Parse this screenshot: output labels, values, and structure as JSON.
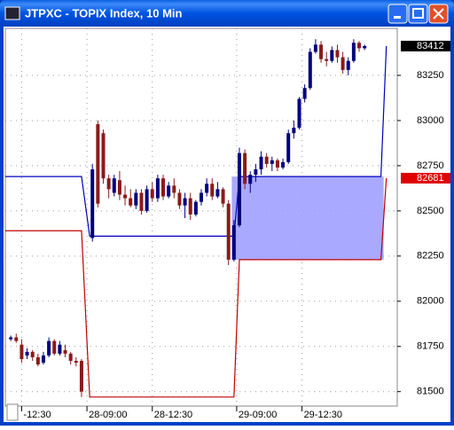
{
  "window_title": "JTPXC - TOPIX Index, 10 Min",
  "chart_data": {
    "type": "candlestick",
    "x": [
      0,
      1,
      2,
      3,
      4,
      5,
      6,
      7,
      8,
      9,
      10,
      11,
      12,
      13,
      15,
      16,
      17,
      18,
      19,
      20,
      21,
      22,
      23,
      24,
      25,
      26,
      27,
      28,
      29,
      30,
      31,
      32,
      33,
      34,
      35,
      36,
      37,
      38,
      39,
      40,
      41,
      42,
      43,
      44,
      45,
      46,
      47,
      48,
      49,
      50,
      51,
      52,
      53,
      54,
      55,
      56,
      57,
      58,
      59,
      60,
      61,
      62,
      63,
      64,
      65
    ],
    "open": [
      81790,
      81800,
      81760,
      81700,
      81720,
      81690,
      81660,
      81700,
      81780,
      81710,
      81730,
      81710,
      81670,
      81670,
      82350,
      82980,
      82930,
      82680,
      82600,
      82670,
      82590,
      82570,
      82530,
      82600,
      82500,
      82620,
      82570,
      82680,
      82580,
      82640,
      82600,
      82530,
      82570,
      82480,
      82550,
      82600,
      82650,
      82580,
      82620,
      82540,
      82230,
      82420,
      82820,
      82650,
      82700,
      82730,
      82800,
      82760,
      82780,
      82740,
      82770,
      82930,
      82960,
      83120,
      83180,
      83380,
      83420,
      83340,
      83330,
      83390,
      83350,
      83280,
      83330,
      83430,
      83400
    ],
    "high": [
      81810,
      81820,
      81790,
      81740,
      81730,
      81710,
      81720,
      81800,
      81790,
      81780,
      81760,
      81720,
      81690,
      81680,
      82760,
      83000,
      82950,
      82700,
      82700,
      82720,
      82640,
      82620,
      82620,
      82620,
      82640,
      82660,
      82700,
      82700,
      82660,
      82680,
      82620,
      82600,
      82600,
      82560,
      82620,
      82680,
      82680,
      82660,
      82630,
      82560,
      82450,
      82850,
      82840,
      82720,
      82760,
      82830,
      82820,
      82800,
      82790,
      82790,
      82950,
      83000,
      83130,
      83200,
      83400,
      83450,
      83440,
      83380,
      83410,
      83420,
      83380,
      83350,
      83450,
      83440,
      83420
    ],
    "low": [
      81780,
      81770,
      81660,
      81680,
      81670,
      81640,
      81650,
      81690,
      81700,
      81700,
      81690,
      81650,
      81640,
      81470,
      82330,
      82520,
      82650,
      82570,
      82580,
      82560,
      82530,
      82520,
      82510,
      82480,
      82490,
      82550,
      82550,
      82560,
      82570,
      82570,
      82510,
      82460,
      82450,
      82470,
      82530,
      82580,
      82560,
      82570,
      82520,
      82200,
      82220,
      82410,
      82620,
      82600,
      82660,
      82700,
      82740,
      82720,
      82720,
      82730,
      82760,
      82900,
      82950,
      83100,
      83170,
      83370,
      83320,
      83300,
      83320,
      83320,
      83260,
      83250,
      83320,
      83380,
      83390
    ],
    "close": [
      81800,
      81780,
      81680,
      81720,
      81690,
      81650,
      81700,
      81780,
      81710,
      81760,
      81710,
      81670,
      81660,
      81500,
      82730,
      82540,
      82680,
      82620,
      82680,
      82590,
      82570,
      82530,
      82600,
      82500,
      82620,
      82570,
      82680,
      82580,
      82640,
      82600,
      82530,
      82570,
      82480,
      82550,
      82600,
      82650,
      82580,
      82620,
      82540,
      82230,
      82420,
      82820,
      82650,
      82700,
      82730,
      82800,
      82760,
      82780,
      82740,
      82770,
      82930,
      82960,
      83120,
      83180,
      83380,
      83420,
      83340,
      83330,
      83390,
      83350,
      83280,
      83330,
      83430,
      83400,
      83412
    ],
    "up_color": "#000080",
    "down_color": "#8b1a1a",
    "lines": [
      {
        "color": "#0000c0",
        "x": [
          -1,
          13,
          14.5,
          41,
          42,
          68,
          69
        ],
        "values": [
          82690,
          82690,
          82360,
          82360,
          82690,
          82690,
          83412
        ]
      },
      {
        "color": "#c00000",
        "x": [
          -1,
          13,
          14.5,
          41,
          42,
          68,
          69
        ],
        "values": [
          82390,
          82390,
          81470,
          81470,
          82230,
          82230,
          82681
        ]
      }
    ],
    "zone": {
      "color": "#9a9aff",
      "xlim": [
        40.6,
        68.5
      ],
      "ylim": [
        82230,
        82690
      ]
    },
    "markers": [
      {
        "value": 83412,
        "color": "#000000"
      },
      {
        "value": 82681,
        "color": "#e00000"
      }
    ],
    "xlim": [
      -1,
      71
    ],
    "ylim": [
      81420,
      83510
    ],
    "xticks": [
      {
        "value": 2,
        "label": "-12:30"
      },
      {
        "value": 14,
        "label": "28-09:00"
      },
      {
        "value": 26,
        "label": "28-12:30"
      },
      {
        "value": 41.5,
        "label": "29-09:00"
      },
      {
        "value": 53.5,
        "label": "29-12:30"
      }
    ],
    "yticks": [
      81500,
      81750,
      82000,
      82250,
      82500,
      82750,
      83000,
      83250
    ],
    "grid": true
  }
}
